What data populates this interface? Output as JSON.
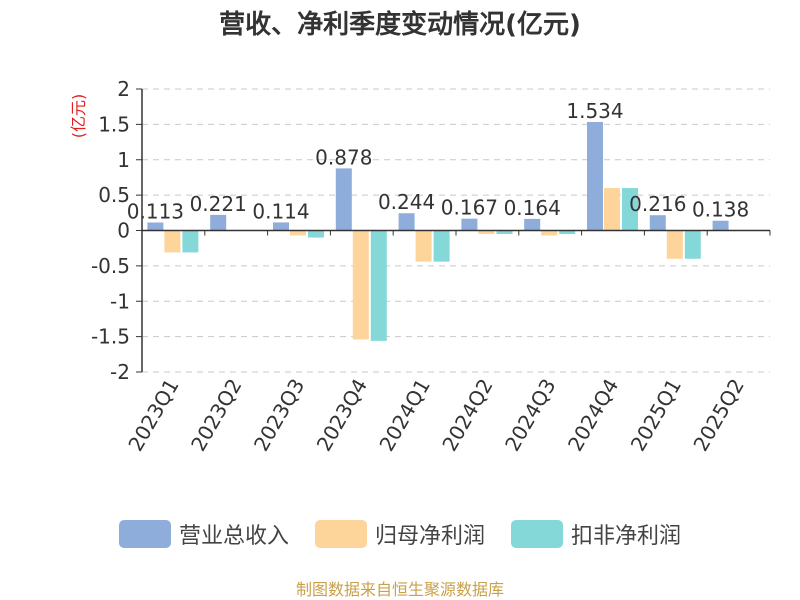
{
  "title": "营收、净利季度变动情况(亿元)",
  "unit_label": "(亿元)",
  "source": "制图数据来自恒生聚源数据库",
  "colors": {
    "revenue": "#8eaddb",
    "net_profit": "#fdd59a",
    "net_profit_deducted": "#84d8d8",
    "unit_label": "#e02020",
    "source": "#c9a14a",
    "grid": "#c9c9c9"
  },
  "legend": [
    {
      "name": "营业总收入",
      "color": "#8eaddb"
    },
    {
      "name": "归母净利润",
      "color": "#fdd59a"
    },
    {
      "name": "扣非净利润",
      "color": "#84d8d8"
    }
  ],
  "chart_data": {
    "type": "bar",
    "title": "营收、净利季度变动情况(亿元)",
    "ylabel": "(亿元)",
    "xlabel": "",
    "ylim": [
      -2,
      2
    ],
    "yticks": [
      2,
      1.5,
      1,
      0.5,
      0,
      -0.5,
      -1,
      -1.5,
      -2
    ],
    "ytick_labels": [
      "2",
      "1.5",
      "1",
      "0.5",
      "0",
      "-0.5",
      "-1",
      "-1.5",
      "-2"
    ],
    "grid": true,
    "legend_position": "bottom",
    "categories": [
      "2023Q1",
      "2023Q2",
      "2023Q3",
      "2023Q4",
      "2024Q1",
      "2024Q2",
      "2024Q3",
      "2024Q4",
      "2025Q1",
      "2025Q2"
    ],
    "series": [
      {
        "name": "营业总收入",
        "values": [
          0.113,
          0.221,
          0.114,
          0.878,
          0.244,
          0.167,
          0.164,
          1.534,
          0.216,
          0.138
        ]
      },
      {
        "name": "归母净利润",
        "values": [
          -0.31,
          0,
          -0.07,
          -1.54,
          -0.44,
          -0.05,
          -0.07,
          0.6,
          -0.4,
          0
        ]
      },
      {
        "name": "扣非净利润",
        "values": [
          -0.31,
          0,
          -0.1,
          -1.56,
          -0.44,
          -0.05,
          -0.05,
          0.6,
          -0.4,
          0
        ]
      }
    ],
    "data_labels": [
      "0.113",
      "0.221",
      "0.114",
      "0.878",
      "0.244",
      "0.167",
      "0.164",
      "1.534",
      "0.216",
      "0.138"
    ]
  }
}
